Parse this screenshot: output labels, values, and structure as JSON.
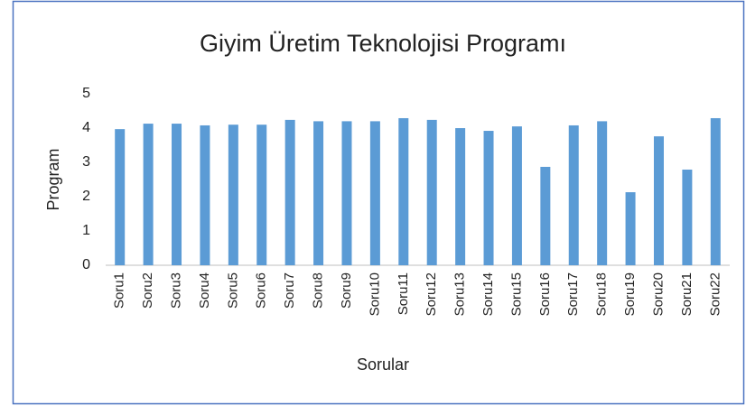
{
  "chart_data": {
    "type": "bar",
    "title": "Giyim Üretim Teknolojisi Programı",
    "x_label": "Sorular",
    "y_label": "Program",
    "categories": [
      "Soru1",
      "Soru2",
      "Soru3",
      "Soru4",
      "Soru5",
      "Soru6",
      "Soru7",
      "Soru8",
      "Soru9",
      "Soru10",
      "Soru11",
      "Soru12",
      "Soru13",
      "Soru14",
      "Soru15",
      "Soru16",
      "Soru17",
      "Soru18",
      "Soru19",
      "Soru20",
      "Soru21",
      "Soru22"
    ],
    "values": [
      3.97,
      4.13,
      4.13,
      4.08,
      4.1,
      4.1,
      4.24,
      4.2,
      4.2,
      4.2,
      4.29,
      4.24,
      4.0,
      3.92,
      4.05,
      2.87,
      4.08,
      4.2,
      2.13,
      3.76,
      2.79,
      4.29
    ],
    "color": "#5b9bd5",
    "ylim": [
      0,
      5
    ],
    "yticks": [
      0,
      1,
      2,
      3,
      4,
      5
    ],
    "grid": false
  }
}
